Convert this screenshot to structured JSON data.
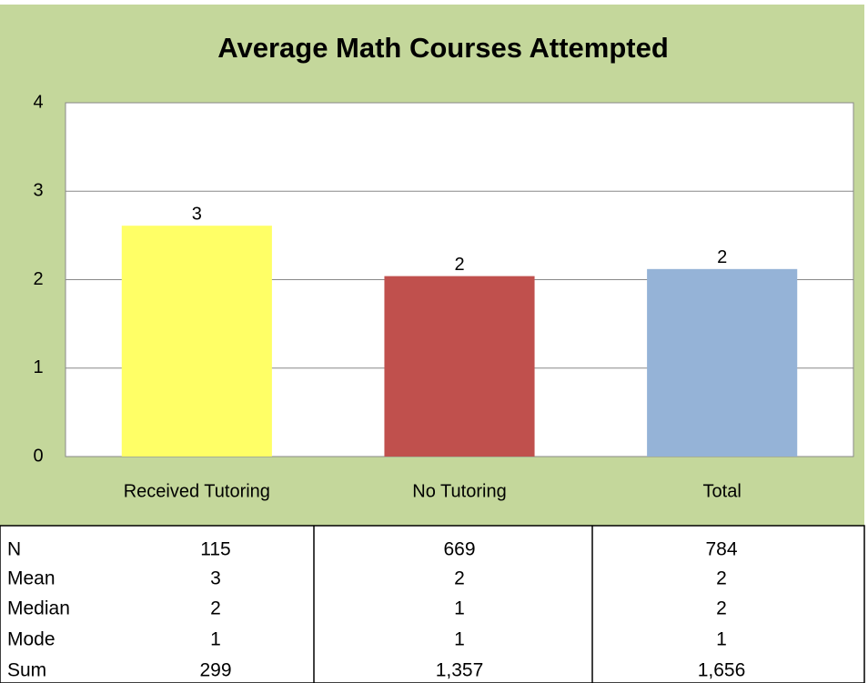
{
  "chart_data": {
    "type": "bar",
    "title": "Average Math Courses Attempted",
    "categories": [
      "Received Tutoring",
      "No Tutoring",
      "Total"
    ],
    "values": [
      2.61,
      2.04,
      2.12
    ],
    "value_labels": [
      "3",
      "2",
      "2"
    ],
    "colors": [
      "#ffff66",
      "#c0504d",
      "#95b3d7"
    ],
    "ylim": [
      0,
      4
    ],
    "yticks": [
      0,
      1,
      2,
      3,
      4
    ],
    "grid": true
  },
  "table": {
    "rows": [
      [
        "N",
        "115",
        "669",
        "784"
      ],
      [
        "Mean",
        "3",
        "2",
        "2"
      ],
      [
        "Median",
        "2",
        "1",
        "2"
      ],
      [
        "Mode",
        "1",
        "1",
        "1"
      ],
      [
        "Sum",
        "299",
        "1,357",
        "1,656"
      ]
    ]
  }
}
